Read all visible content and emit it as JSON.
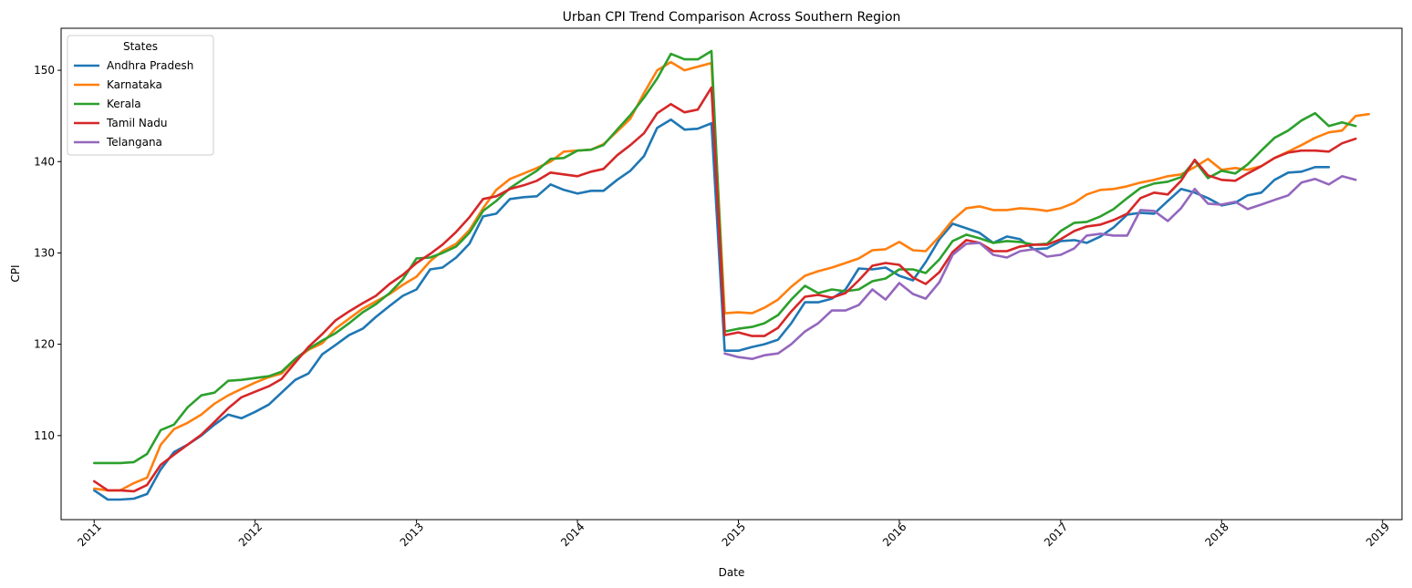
{
  "chart_data": {
    "type": "line",
    "title": "Urban CPI Trend Comparison Across Southern Region",
    "xlabel": "Date",
    "ylabel": "CPI",
    "x_ticks": [
      "2011",
      "2012",
      "2013",
      "2014",
      "2015",
      "2016",
      "2017",
      "2018",
      "2019"
    ],
    "y_ticks": [
      110,
      120,
      130,
      140,
      150
    ],
    "xlim": [
      "2010-10-18",
      "2019-02-14"
    ],
    "ylim": [
      100.8,
      154.6
    ],
    "grid": false,
    "legend": {
      "title": "States",
      "placement": "top-left"
    },
    "x_start": "2011-01",
    "x_step": "1 month",
    "series": [
      {
        "name": "Andhra Pradesh",
        "color": "#1f77b4",
        "values": [
          104,
          103,
          103,
          103.1,
          103.6,
          106.3,
          108.2,
          109,
          110,
          111.2,
          112.3,
          111.9,
          112.6,
          113.4,
          114.7,
          116.1,
          116.8,
          118.9,
          119.9,
          121,
          121.7,
          123,
          124.2,
          125.3,
          126,
          128.2,
          128.4,
          129.5,
          131,
          134,
          134.3,
          135.9,
          136.1,
          136.2,
          137.5,
          136.9,
          136.5,
          136.8,
          136.8,
          138,
          139,
          140.6,
          143.7,
          144.6,
          143.5,
          143.6,
          144.2,
          119.3,
          119.3,
          119.7,
          120,
          120.5,
          122.3,
          124.6,
          124.6,
          125,
          126,
          128.3,
          128.2,
          128.4,
          127.5,
          127,
          129,
          131.5,
          133.2,
          132.7,
          132.2,
          131.1,
          131.8,
          131.5,
          130.4,
          130.5,
          131.3,
          131.4,
          131.1,
          131.8,
          132.8,
          134.2,
          134.4,
          134.3,
          135.7,
          137,
          136.6,
          136,
          135.2,
          135.5,
          136.3,
          136.6,
          138,
          138.8,
          138.9,
          139.4,
          139.4
        ]
      },
      {
        "name": "Karnataka",
        "color": "#ff7f0e",
        "values": [
          104.2,
          104,
          104,
          104.8,
          105.4,
          109,
          110.7,
          111.4,
          112.3,
          113.5,
          114.4,
          115.1,
          115.8,
          116.4,
          116.8,
          118.3,
          119.4,
          120.1,
          121.7,
          122.8,
          123.9,
          124.7,
          125.5,
          126.5,
          127.4,
          129.1,
          130.2,
          131,
          132.5,
          134.9,
          136.9,
          138.1,
          138.7,
          139.3,
          140,
          141.1,
          141.2,
          141.3,
          141.9,
          143.3,
          144.7,
          147.5,
          150,
          150.9,
          150,
          150.4,
          150.8,
          123.4,
          123.5,
          123.4,
          124,
          124.9,
          126.3,
          127.5,
          128,
          128.4,
          128.9,
          129.4,
          130.3,
          130.4,
          131.2,
          130.3,
          130.2,
          131.8,
          133.6,
          134.9,
          135.1,
          134.7,
          134.7,
          134.9,
          134.8,
          134.6,
          134.9,
          135.5,
          136.4,
          136.9,
          137,
          137.3,
          137.7,
          138,
          138.4,
          138.6,
          139.4,
          140.3,
          139.1,
          139.3,
          139.1,
          139.5,
          140.4,
          141.1,
          141.8,
          142.6,
          143.2,
          143.4,
          145,
          145.2
        ]
      },
      {
        "name": "Kerala",
        "color": "#2ca02c",
        "values": [
          107,
          107,
          107,
          107.1,
          108,
          110.6,
          111.2,
          113.1,
          114.4,
          114.7,
          116,
          116.1,
          116.3,
          116.5,
          117,
          118.4,
          119.5,
          120.4,
          121.2,
          122.3,
          123.5,
          124.4,
          125.6,
          127.1,
          129.4,
          129.5,
          130,
          130.7,
          132.2,
          134.6,
          135.7,
          137.1,
          138.1,
          139,
          140.3,
          140.4,
          141.2,
          141.3,
          141.8,
          143.5,
          145.1,
          147,
          149.1,
          151.8,
          151.2,
          151.2,
          152.1,
          121.4,
          121.7,
          121.9,
          122.3,
          123.2,
          124.9,
          126.4,
          125.6,
          126,
          125.8,
          126,
          126.9,
          127.2,
          128.2,
          128.2,
          127.8,
          129.3,
          131.3,
          132,
          131.6,
          131.1,
          131.3,
          131.2,
          130.9,
          131,
          132.4,
          133.3,
          133.4,
          134,
          134.8,
          136,
          137.1,
          137.6,
          137.8,
          138.3,
          140.1,
          138.2,
          139,
          138.7,
          139.7,
          141.2,
          142.6,
          143.4,
          144.5,
          145.3,
          143.9,
          144.3,
          143.9
        ]
      },
      {
        "name": "Tamil Nadu",
        "color": "#d62728",
        "values": [
          105,
          104,
          104,
          103.9,
          104.6,
          106.8,
          107.9,
          109,
          110.1,
          111.5,
          113,
          114.2,
          114.8,
          115.4,
          116.2,
          118,
          119.7,
          121.1,
          122.6,
          123.6,
          124.5,
          125.3,
          126.6,
          127.6,
          128.9,
          129.9,
          130.9,
          132.3,
          133.9,
          135.9,
          136.2,
          137,
          137.4,
          137.9,
          138.8,
          138.6,
          138.4,
          138.9,
          139.2,
          140.7,
          141.8,
          143.1,
          145.3,
          146.3,
          145.4,
          145.7,
          148.1,
          121,
          121.3,
          120.9,
          120.9,
          121.8,
          123.6,
          125.2,
          125.4,
          125.1,
          125.6,
          127,
          128.6,
          128.9,
          128.7,
          127.3,
          126.6,
          127.9,
          130.1,
          131.4,
          131.1,
          130.2,
          130.2,
          130.7,
          130.9,
          130.9,
          131.5,
          132.4,
          132.9,
          133.1,
          133.6,
          134.3,
          136,
          136.6,
          136.4,
          137.9,
          140.2,
          138.5,
          138,
          137.9,
          138.7,
          139.5,
          140.4,
          141,
          141.2,
          141.2,
          141.1,
          142,
          142.5
        ]
      },
      {
        "name": "Telangana",
        "color": "#9467bd",
        "values": [
          null,
          null,
          null,
          null,
          null,
          null,
          null,
          null,
          null,
          null,
          null,
          null,
          null,
          null,
          null,
          null,
          null,
          null,
          null,
          null,
          null,
          null,
          null,
          null,
          null,
          null,
          null,
          null,
          null,
          null,
          null,
          null,
          null,
          null,
          null,
          null,
          null,
          null,
          null,
          null,
          null,
          null,
          null,
          null,
          null,
          null,
          null,
          119,
          118.6,
          118.4,
          118.8,
          119,
          120,
          121.4,
          122.3,
          123.7,
          123.7,
          124.3,
          126,
          124.9,
          126.7,
          125.5,
          125,
          126.8,
          129.8,
          131,
          131.1,
          129.8,
          129.5,
          130.2,
          130.4,
          129.6,
          129.8,
          130.5,
          131.9,
          132.1,
          131.9,
          131.9,
          134.7,
          134.6,
          133.5,
          134.9,
          137,
          135.4,
          135.3,
          135.6,
          134.8,
          135.3,
          135.8,
          136.3,
          137.7,
          138.1,
          137.5,
          138.4,
          138
        ]
      }
    ]
  }
}
